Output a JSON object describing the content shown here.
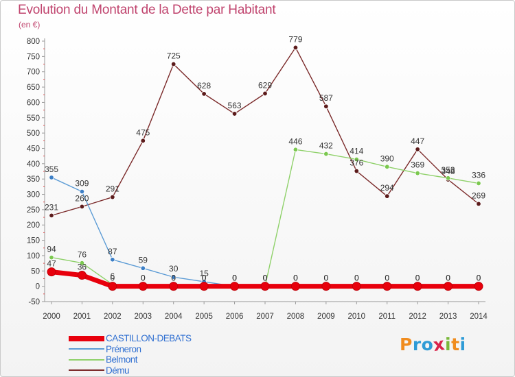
{
  "header": {
    "title": "Evolution du Montant de la Dette par Habitant",
    "subtitle": "(en €)"
  },
  "logo": {
    "text": "Proxiti",
    "colors": [
      "#f08c1e",
      "#2e9bd6",
      "#2e9bd6",
      "#d8234a",
      "#7ab83b",
      "#f08c1e",
      "#2e9bd6"
    ]
  },
  "chart_data": {
    "type": "line",
    "title": "Evolution du Montant de la Dette par Habitant",
    "subtitle": "(en €)",
    "xlabel": "",
    "ylabel": "",
    "x": [
      "2000",
      "2001",
      "2002",
      "2003",
      "2004",
      "2005",
      "2006",
      "2007",
      "2008",
      "2009",
      "2010",
      "2011",
      "2012",
      "2013",
      "2014"
    ],
    "ylim": [
      -50,
      800
    ],
    "yticks": [
      -50,
      0,
      50,
      100,
      150,
      200,
      250,
      300,
      350,
      400,
      450,
      500,
      550,
      600,
      650,
      700,
      750,
      800
    ],
    "grid": false,
    "legend_position": "bottom-left",
    "series": [
      {
        "name": "CASTILLON-DEBATS",
        "color": "#e8000c",
        "point_color": "#e8000c",
        "values": [
          47,
          36,
          0,
          0,
          0,
          0,
          0,
          0,
          0,
          0,
          0,
          0,
          0,
          0,
          0
        ],
        "labels": [
          "47",
          "36",
          "0",
          "0",
          "0",
          "0",
          "0",
          "0",
          "0",
          "0",
          "0",
          "0",
          "0",
          "0",
          "0"
        ]
      },
      {
        "name": "Préneron",
        "color": "#5b9bd5",
        "point_color": "#3d7fc6",
        "values": [
          355,
          309,
          87,
          59,
          30,
          15,
          0,
          0,
          0,
          0,
          0,
          0,
          0,
          0,
          0
        ],
        "labels": [
          "355",
          "309",
          "87",
          "59",
          "30",
          "15",
          "0",
          "0",
          "0",
          "0",
          "0",
          "0",
          "0",
          "0",
          "0"
        ]
      },
      {
        "name": "Belmont",
        "color": "#8fd16a",
        "point_color": "#7bc84f",
        "values": [
          94,
          76,
          6,
          0,
          0,
          0,
          0,
          0,
          446,
          432,
          414,
          390,
          369,
          353,
          336
        ],
        "labels": [
          "94",
          "76",
          "6",
          "0",
          "0",
          "0",
          "0",
          "0",
          "446",
          "432",
          "414",
          "390",
          "369",
          "353",
          "336"
        ]
      },
      {
        "name": "Dému",
        "color": "#7b2a2a",
        "point_color": "#5c1b1b",
        "values": [
          231,
          260,
          291,
          475,
          725,
          628,
          563,
          629,
          779,
          587,
          376,
          294,
          447,
          348,
          269
        ],
        "labels": [
          "231",
          "260",
          "291",
          "475",
          "725",
          "628",
          "563",
          "629",
          "779",
          "587",
          "376",
          "294",
          "447",
          "348",
          "269"
        ]
      }
    ]
  }
}
